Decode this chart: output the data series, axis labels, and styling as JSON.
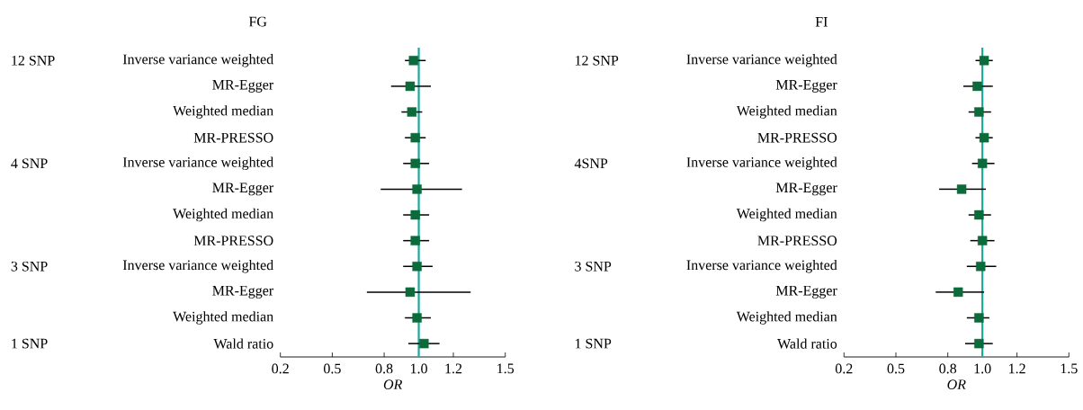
{
  "chart_data": [
    {
      "type": "scatter",
      "orientation": "horizontal",
      "title": "FG",
      "xlabel": "OR",
      "marker": "square",
      "color": "#0b6b3a",
      "categories": [
        "Inverse variance weighted",
        "MR-Egger",
        "Weighted median",
        "MR-PRESSO",
        "Inverse variance weighted",
        "MR-Egger",
        "Weighted median",
        "MR-PRESSO",
        "Inverse variance weighted",
        "MR-Egger",
        "Weighted median",
        "Wald ratio"
      ],
      "values": [
        0.97,
        0.95,
        0.96,
        0.98,
        0.98,
        0.99,
        0.98,
        0.98,
        0.99,
        0.95,
        0.99,
        1.03
      ],
      "errors": [
        [
          0.92,
          1.04
        ],
        [
          0.84,
          1.07
        ],
        [
          0.9,
          1.02
        ],
        [
          0.92,
          1.04
        ],
        [
          0.91,
          1.06
        ],
        [
          0.78,
          1.25
        ],
        [
          0.91,
          1.06
        ],
        [
          0.91,
          1.06
        ],
        [
          0.91,
          1.08
        ],
        [
          0.7,
          1.3
        ],
        [
          0.92,
          1.07
        ],
        [
          0.94,
          1.12
        ]
      ],
      "xlim": [
        0.2,
        1.5
      ],
      "xticks": [
        0.2,
        0.5,
        0.8,
        {
          "value": 1,
          "label": "1.0"
        },
        1.2,
        1.5
      ],
      "ref_lines": [
        {
          "axis": "x",
          "value": 1,
          "color": "#1aaa9c"
        }
      ],
      "annotations": [
        "12 SNP",
        "4 SNP",
        "3 SNP",
        "1 SNP"
      ]
    },
    {
      "type": "scatter",
      "orientation": "horizontal",
      "title": "FI",
      "xlabel": "OR",
      "marker": "square",
      "color": "#0b6b3a",
      "categories": [
        "Inverse variance weighted",
        "MR-Egger",
        "Weighted median",
        "MR-PRESSO",
        "Inverse variance weighted",
        "MR-Egger",
        "Weighted median",
        "MR-PRESSO",
        "Inverse variance weighted",
        "MR-Egger",
        "Weighted median",
        "Wald ratio"
      ],
      "values": [
        1.01,
        0.97,
        0.98,
        1.01,
        1.0,
        0.88,
        0.98,
        1.0,
        0.99,
        0.86,
        0.98,
        0.98
      ],
      "errors": [
        [
          0.96,
          1.06
        ],
        [
          0.89,
          1.06
        ],
        [
          0.92,
          1.05
        ],
        [
          0.96,
          1.06
        ],
        [
          0.94,
          1.07
        ],
        [
          0.75,
          1.02
        ],
        [
          0.92,
          1.05
        ],
        [
          0.93,
          1.07
        ],
        [
          0.91,
          1.08
        ],
        [
          0.73,
          1.01
        ],
        [
          0.91,
          1.04
        ],
        [
          0.9,
          1.06
        ]
      ],
      "xlim": [
        0.2,
        1.5
      ],
      "xticks": [
        0.2,
        0.5,
        0.8,
        {
          "value": 1,
          "label": "1.0"
        },
        1.2,
        1.5
      ],
      "ref_lines": [
        {
          "axis": "x",
          "value": 1,
          "color": "#1aaa9c"
        }
      ],
      "annotations": [
        "12 SNP",
        "4SNP",
        "3 SNP",
        "1 SNP"
      ]
    }
  ]
}
